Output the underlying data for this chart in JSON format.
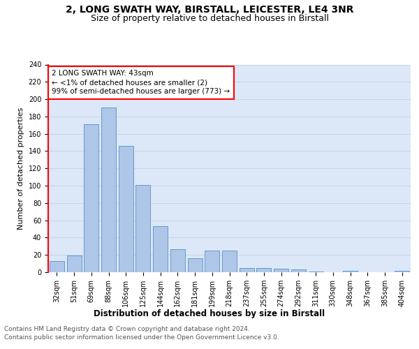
{
  "title1": "2, LONG SWATH WAY, BIRSTALL, LEICESTER, LE4 3NR",
  "title2": "Size of property relative to detached houses in Birstall",
  "xlabel": "Distribution of detached houses by size in Birstall",
  "ylabel": "Number of detached properties",
  "categories": [
    "32sqm",
    "51sqm",
    "69sqm",
    "88sqm",
    "106sqm",
    "125sqm",
    "144sqm",
    "162sqm",
    "181sqm",
    "199sqm",
    "218sqm",
    "237sqm",
    "255sqm",
    "274sqm",
    "292sqm",
    "311sqm",
    "330sqm",
    "348sqm",
    "367sqm",
    "385sqm",
    "404sqm"
  ],
  "values": [
    13,
    19,
    171,
    190,
    146,
    101,
    53,
    27,
    16,
    25,
    25,
    5,
    5,
    4,
    3,
    1,
    0,
    2,
    0,
    0,
    2
  ],
  "bar_color": "#aec6e8",
  "bar_edge_color": "#5590c8",
  "property_label": "2 LONG SWATH WAY: 43sqm",
  "annotation_line1": "← <1% of detached houses are smaller (2)",
  "annotation_line2": "99% of semi-detached houses are larger (773) →",
  "annotation_box_color": "white",
  "annotation_box_edge_color": "red",
  "ylim": [
    0,
    240
  ],
  "yticks": [
    0,
    20,
    40,
    60,
    80,
    100,
    120,
    140,
    160,
    180,
    200,
    220,
    240
  ],
  "grid_color": "#c8d4e8",
  "bg_color": "#dce8f8",
  "title1_fontsize": 10,
  "title2_fontsize": 9,
  "xlabel_fontsize": 8.5,
  "ylabel_fontsize": 8,
  "tick_fontsize": 7,
  "annotation_fontsize": 7.5,
  "footer_fontsize": 6.5,
  "footer_line1": "Contains HM Land Registry data © Crown copyright and database right 2024.",
  "footer_line2": "Contains public sector information licensed under the Open Government Licence v3.0."
}
